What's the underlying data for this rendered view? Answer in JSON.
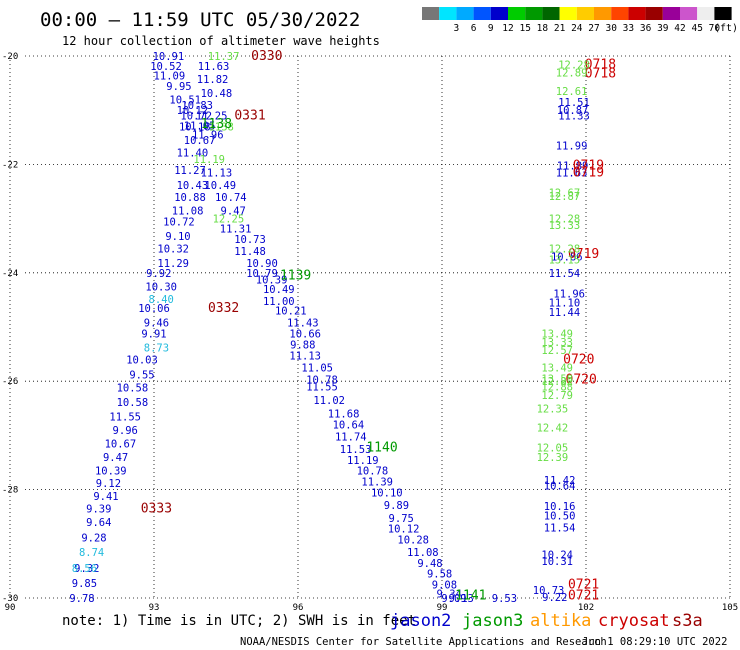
{
  "title": "00:00 – 11:59 UTC 05/30/2022",
  "subtitle": "12 hour collection of altimeter wave heights",
  "legend_unit": "(ft)",
  "note": "note: 1) Time is in UTC; 2) SWH is in feet",
  "credit": "NOAA/NESDIS Center for Satellite Applications and Research",
  "timestamp": "Jun  1 08:29:10 UTC 2022",
  "colors": {
    "jason2": "#0000cc",
    "jason3": "#009900",
    "altika": "#ff9900",
    "cryosat": "#cc0000",
    "s3a": "#990000",
    "light_green": "#66dd44",
    "cyan": "#22bbdd"
  },
  "color_scale": [
    {
      "label": "",
      "color": "#777777"
    },
    {
      "label": "3",
      "color": "#00e5ff"
    },
    {
      "label": "6",
      "color": "#00aaff"
    },
    {
      "label": "9",
      "color": "#0055ff"
    },
    {
      "label": "12",
      "color": "#0000cc"
    },
    {
      "label": "15",
      "color": "#00cc00"
    },
    {
      "label": "18",
      "color": "#009900"
    },
    {
      "label": "21",
      "color": "#006600"
    },
    {
      "label": "24",
      "color": "#ffff00"
    },
    {
      "label": "27",
      "color": "#ffcc00"
    },
    {
      "label": "30",
      "color": "#ff9900"
    },
    {
      "label": "33",
      "color": "#ff4400"
    },
    {
      "label": "36",
      "color": "#cc0000"
    },
    {
      "label": "39",
      "color": "#990000"
    },
    {
      "label": "42",
      "color": "#990099"
    },
    {
      "label": "45",
      "color": "#cc55cc"
    },
    {
      "label": "70",
      "color": "#eeeeee"
    },
    {
      "label": "",
      "color": "#000000"
    }
  ],
  "chart_data": {
    "type": "scatter",
    "title": "00:00 – 11:59 UTC 05/30/2022",
    "subtitle": "12 hour collection of altimeter wave heights",
    "xlim": [
      90,
      105
    ],
    "ylim": [
      -30,
      -20
    ],
    "x_ticks": [
      "90",
      "93",
      "96",
      "99",
      "102",
      "105"
    ],
    "y_ticks": [
      "-20",
      "-22",
      "-24",
      "-26",
      "-28",
      "-30"
    ],
    "grid": true,
    "legend": [
      "jason2",
      "jason3",
      "altika",
      "cryosat",
      "s3a"
    ],
    "series": [
      {
        "name": "jason2",
        "color": "#0000cc",
        "points": [
          {
            "x": 93.3,
            "y": -20.0,
            "v": "10.91"
          },
          {
            "x": 93.25,
            "y": -20.18,
            "v": "10.52"
          },
          {
            "x": 94.24,
            "y": -20.18,
            "v": "11.63"
          },
          {
            "x": 93.32,
            "y": -20.36,
            "v": "11.09"
          },
          {
            "x": 94.22,
            "y": -20.42,
            "v": "11.82"
          },
          {
            "x": 93.52,
            "y": -20.55,
            "v": "9.95"
          },
          {
            "x": 94.3,
            "y": -20.68,
            "v": "10.48"
          },
          {
            "x": 93.65,
            "y": -20.8,
            "v": "10.51"
          },
          {
            "x": 93.9,
            "y": -20.9,
            "v": "10.83"
          },
          {
            "x": 93.8,
            "y": -21.0,
            "v": "10.12"
          },
          {
            "x": 93.88,
            "y": -21.1,
            "v": "10.72"
          },
          {
            "x": 94.2,
            "y": -21.1,
            "v": "11.25"
          },
          {
            "x": 93.85,
            "y": -21.3,
            "v": "10.18"
          },
          {
            "x": 93.95,
            "y": -21.28,
            "v": "11.05"
          },
          {
            "x": 94.12,
            "y": -21.45,
            "v": "11.96"
          },
          {
            "x": 93.95,
            "y": -21.55,
            "v": "10.67"
          },
          {
            "x": 93.8,
            "y": -21.78,
            "v": "11.40"
          },
          {
            "x": 93.75,
            "y": -22.1,
            "v": "11.27"
          },
          {
            "x": 94.3,
            "y": -22.15,
            "v": "11.13"
          },
          {
            "x": 93.8,
            "y": -22.38,
            "v": "10.43"
          },
          {
            "x": 94.38,
            "y": -22.38,
            "v": "10.49"
          },
          {
            "x": 93.75,
            "y": -22.6,
            "v": "10.88"
          },
          {
            "x": 94.6,
            "y": -22.6,
            "v": "10.74"
          },
          {
            "x": 93.7,
            "y": -22.85,
            "v": "11.08"
          },
          {
            "x": 94.65,
            "y": -22.85,
            "v": "9.47"
          },
          {
            "x": 93.52,
            "y": -23.05,
            "v": "10.72"
          },
          {
            "x": 94.7,
            "y": -23.18,
            "v": "11.31"
          },
          {
            "x": 93.5,
            "y": -23.32,
            "v": "9.10"
          },
          {
            "x": 95.0,
            "y": -23.38,
            "v": "10.73"
          },
          {
            "x": 93.4,
            "y": -23.55,
            "v": "10.32"
          },
          {
            "x": 95.0,
            "y": -23.6,
            "v": "11.48"
          },
          {
            "x": 93.4,
            "y": -23.82,
            "v": "11.29"
          },
          {
            "x": 95.25,
            "y": -23.82,
            "v": "10.90"
          },
          {
            "x": 95.25,
            "y": -24.0,
            "v": "10.79"
          },
          {
            "x": 93.1,
            "y": -24.0,
            "v": "9.92"
          },
          {
            "x": 95.45,
            "y": -24.12,
            "v": "10.39"
          },
          {
            "x": 93.15,
            "y": -24.25,
            "v": "10.30"
          },
          {
            "x": 95.6,
            "y": -24.3,
            "v": "10.49"
          },
          {
            "x": 95.6,
            "y": -24.52,
            "v": "11.00"
          },
          {
            "x": 93.0,
            "y": -24.65,
            "v": "10.06"
          },
          {
            "x": 95.85,
            "y": -24.7,
            "v": "10.21"
          },
          {
            "x": 93.05,
            "y": -24.92,
            "v": "9.46"
          },
          {
            "x": 96.1,
            "y": -24.92,
            "v": "11.43"
          },
          {
            "x": 93.0,
            "y": -25.12,
            "v": "9.91"
          },
          {
            "x": 96.15,
            "y": -25.12,
            "v": "10.66"
          },
          {
            "x": 96.1,
            "y": -25.32,
            "v": "9.88"
          },
          {
            "x": 96.15,
            "y": -25.53,
            "v": "11.13"
          },
          {
            "x": 92.75,
            "y": -25.6,
            "v": "10.03"
          },
          {
            "x": 96.4,
            "y": -25.75,
            "v": "11.05"
          },
          {
            "x": 92.75,
            "y": -25.88,
            "v": "9.55"
          },
          {
            "x": 96.5,
            "y": -25.97,
            "v": "10.78"
          },
          {
            "x": 92.55,
            "y": -26.12,
            "v": "10.58"
          },
          {
            "x": 96.5,
            "y": -26.1,
            "v": "11.55"
          },
          {
            "x": 92.55,
            "y": -26.38,
            "v": "10.58"
          },
          {
            "x": 96.65,
            "y": -26.35,
            "v": "11.02"
          },
          {
            "x": 96.95,
            "y": -26.6,
            "v": "11.68"
          },
          {
            "x": 92.4,
            "y": -26.65,
            "v": "11.55"
          },
          {
            "x": 97.05,
            "y": -26.8,
            "v": "10.64"
          },
          {
            "x": 92.4,
            "y": -26.9,
            "v": "9.96"
          },
          {
            "x": 97.1,
            "y": -27.02,
            "v": "11.74"
          },
          {
            "x": 92.3,
            "y": -27.15,
            "v": "10.67"
          },
          {
            "x": 97.2,
            "y": -27.25,
            "v": "11.53"
          },
          {
            "x": 97.35,
            "y": -27.45,
            "v": "11.19"
          },
          {
            "x": 92.2,
            "y": -27.4,
            "v": "9.47"
          },
          {
            "x": 97.55,
            "y": -27.65,
            "v": "10.78"
          },
          {
            "x": 92.1,
            "y": -27.65,
            "v": "10.39"
          },
          {
            "x": 97.65,
            "y": -27.85,
            "v": "11.39"
          },
          {
            "x": 92.05,
            "y": -27.88,
            "v": "9.12"
          },
          {
            "x": 97.85,
            "y": -28.05,
            "v": "10.10"
          },
          {
            "x": 92.0,
            "y": -28.12,
            "v": "9.41"
          },
          {
            "x": 98.05,
            "y": -28.28,
            "v": "9.89"
          },
          {
            "x": 91.85,
            "y": -28.35,
            "v": "9.39"
          },
          {
            "x": 98.15,
            "y": -28.52,
            "v": "9.75"
          },
          {
            "x": 91.85,
            "y": -28.6,
            "v": "9.64"
          },
          {
            "x": 98.2,
            "y": -28.72,
            "v": "10.12"
          },
          {
            "x": 91.75,
            "y": -28.88,
            "v": "9.28"
          },
          {
            "x": 98.4,
            "y": -28.92,
            "v": "10.28"
          },
          {
            "x": 98.6,
            "y": -29.15,
            "v": "11.08"
          },
          {
            "x": 98.75,
            "y": -29.35,
            "v": "9.48"
          },
          {
            "x": 91.6,
            "y": -29.45,
            "v": "9.32"
          },
          {
            "x": 98.95,
            "y": -29.55,
            "v": "9.58"
          },
          {
            "x": 99.05,
            "y": -29.75,
            "v": "9.08"
          },
          {
            "x": 91.55,
            "y": -29.72,
            "v": "9.85"
          },
          {
            "x": 99.15,
            "y": -29.92,
            "v": "9.34"
          },
          {
            "x": 99.25,
            "y": -30.0,
            "v": "9.09"
          },
          {
            "x": 91.5,
            "y": -30.0,
            "v": "9.78"
          },
          {
            "x": 99.4,
            "y": -30.0,
            "v": "9.13"
          },
          {
            "x": 100.3,
            "y": -30.0,
            "v": "9.53"
          },
          {
            "x": 101.75,
            "y": -20.85,
            "v": "11.51"
          },
          {
            "x": 101.72,
            "y": -21.0,
            "v": "10.87"
          },
          {
            "x": 101.75,
            "y": -21.1,
            "v": "11.33"
          },
          {
            "x": 101.7,
            "y": -21.65,
            "v": "11.99"
          },
          {
            "x": 101.72,
            "y": -22.02,
            "v": "11.89"
          },
          {
            "x": 101.7,
            "y": -22.15,
            "v": "11.63"
          },
          {
            "x": 101.6,
            "y": -23.7,
            "v": "10.86"
          },
          {
            "x": 101.55,
            "y": -24.0,
            "v": "11.54"
          },
          {
            "x": 101.65,
            "y": -24.38,
            "v": "11.96"
          },
          {
            "x": 101.55,
            "y": -24.55,
            "v": "11.10"
          },
          {
            "x": 101.55,
            "y": -24.72,
            "v": "11.44"
          },
          {
            "x": 101.45,
            "y": -27.82,
            "v": "11.42"
          },
          {
            "x": 101.45,
            "y": -27.92,
            "v": "10.64"
          },
          {
            "x": 101.45,
            "y": -28.3,
            "v": "10.16"
          },
          {
            "x": 101.45,
            "y": -28.48,
            "v": "10.50"
          },
          {
            "x": 101.45,
            "y": -28.7,
            "v": "11.54"
          },
          {
            "x": 101.4,
            "y": -29.2,
            "v": "10.24"
          },
          {
            "x": 101.4,
            "y": -29.32,
            "v": "10.31"
          },
          {
            "x": 101.22,
            "y": -29.85,
            "v": "10.73"
          },
          {
            "x": 101.35,
            "y": -29.98,
            "v": "9.22"
          }
        ]
      },
      {
        "name": "jason3",
        "color": "#009900",
        "points": [
          {
            "x": 95.95,
            "y": -24.05,
            "v": "1139"
          },
          {
            "x": 97.75,
            "y": -27.22,
            "v": "1140"
          },
          {
            "x": 99.6,
            "y": -29.95,
            "v": "1141"
          }
        ]
      },
      {
        "name": "altika",
        "color": "#ff9900",
        "points": []
      },
      {
        "name": "cryosat",
        "color": "#cc0000",
        "points": [
          {
            "x": 102.3,
            "y": -20.16,
            "v": "0718"
          },
          {
            "x": 102.3,
            "y": -20.32,
            "v": "0718"
          },
          {
            "x": 102.05,
            "y": -22.02,
            "v": "0719"
          },
          {
            "x": 102.05,
            "y": -22.15,
            "v": "0719"
          },
          {
            "x": 101.95,
            "y": -23.65,
            "v": "0719"
          },
          {
            "x": 101.85,
            "y": -25.6,
            "v": "0720"
          },
          {
            "x": 101.9,
            "y": -25.97,
            "v": "0720"
          },
          {
            "x": 101.95,
            "y": -29.75,
            "v": "0721"
          },
          {
            "x": 101.95,
            "y": -29.95,
            "v": "0721"
          }
        ]
      },
      {
        "name": "s3a",
        "color": "#990000",
        "points": [
          {
            "x": 95.35,
            "y": -20.0,
            "v": "0330"
          },
          {
            "x": 95.0,
            "y": -21.1,
            "v": "0331"
          },
          {
            "x": 94.45,
            "y": -24.65,
            "v": "0332"
          },
          {
            "x": 93.05,
            "y": -28.35,
            "v": "0333"
          }
        ]
      },
      {
        "name": "jason3-light",
        "color": "#66dd44",
        "points": [
          {
            "x": 94.45,
            "y": -20.0,
            "v": "11.37"
          },
          {
            "x": 94.4,
            "y": -21.3,
            "v": "1138"
          },
          {
            "x": 94.15,
            "y": -21.9,
            "v": "11.19"
          },
          {
            "x": 94.55,
            "y": -23.0,
            "v": "12.25"
          },
          {
            "x": 101.75,
            "y": -20.16,
            "v": "12.28"
          },
          {
            "x": 101.7,
            "y": -20.3,
            "v": "12.89"
          },
          {
            "x": 101.7,
            "y": -20.65,
            "v": "12.61"
          },
          {
            "x": 101.55,
            "y": -22.52,
            "v": "12.67"
          },
          {
            "x": 101.55,
            "y": -22.58,
            "v": "12.87"
          },
          {
            "x": 101.55,
            "y": -23.0,
            "v": "12.28"
          },
          {
            "x": 101.55,
            "y": -23.12,
            "v": "13.33"
          },
          {
            "x": 101.55,
            "y": -23.55,
            "v": "12.28"
          },
          {
            "x": 101.55,
            "y": -23.75,
            "v": "13.15"
          },
          {
            "x": 101.4,
            "y": -25.12,
            "v": "13.49"
          },
          {
            "x": 101.4,
            "y": -25.28,
            "v": "13.33"
          },
          {
            "x": 101.4,
            "y": -25.42,
            "v": "12.57"
          },
          {
            "x": 101.4,
            "y": -25.75,
            "v": "13.49"
          },
          {
            "x": 101.4,
            "y": -25.95,
            "v": "13.58"
          },
          {
            "x": 101.4,
            "y": -26.0,
            "v": "12.82"
          },
          {
            "x": 101.4,
            "y": -26.1,
            "v": "12.88"
          },
          {
            "x": 101.4,
            "y": -26.25,
            "v": "12.79"
          },
          {
            "x": 101.3,
            "y": -26.5,
            "v": "12.35"
          },
          {
            "x": 101.3,
            "y": -26.85,
            "v": "12.42"
          },
          {
            "x": 101.3,
            "y": -27.22,
            "v": "12.05"
          },
          {
            "x": 101.3,
            "y": -27.4,
            "v": "12.39"
          }
        ]
      },
      {
        "name": "jason2-cyan",
        "color": "#22bbdd",
        "points": [
          {
            "x": 93.15,
            "y": -24.48,
            "v": "8.40"
          },
          {
            "x": 93.05,
            "y": -25.38,
            "v": "8.73"
          },
          {
            "x": 91.7,
            "y": -29.15,
            "v": "8.74"
          },
          {
            "x": 91.55,
            "y": -29.45,
            "v": "8.56"
          }
        ]
      },
      {
        "name": "jason3-dark",
        "color": "#009900",
        "points": [
          {
            "x": 94.3,
            "y": -21.25,
            "v": "1138"
          }
        ]
      }
    ]
  }
}
